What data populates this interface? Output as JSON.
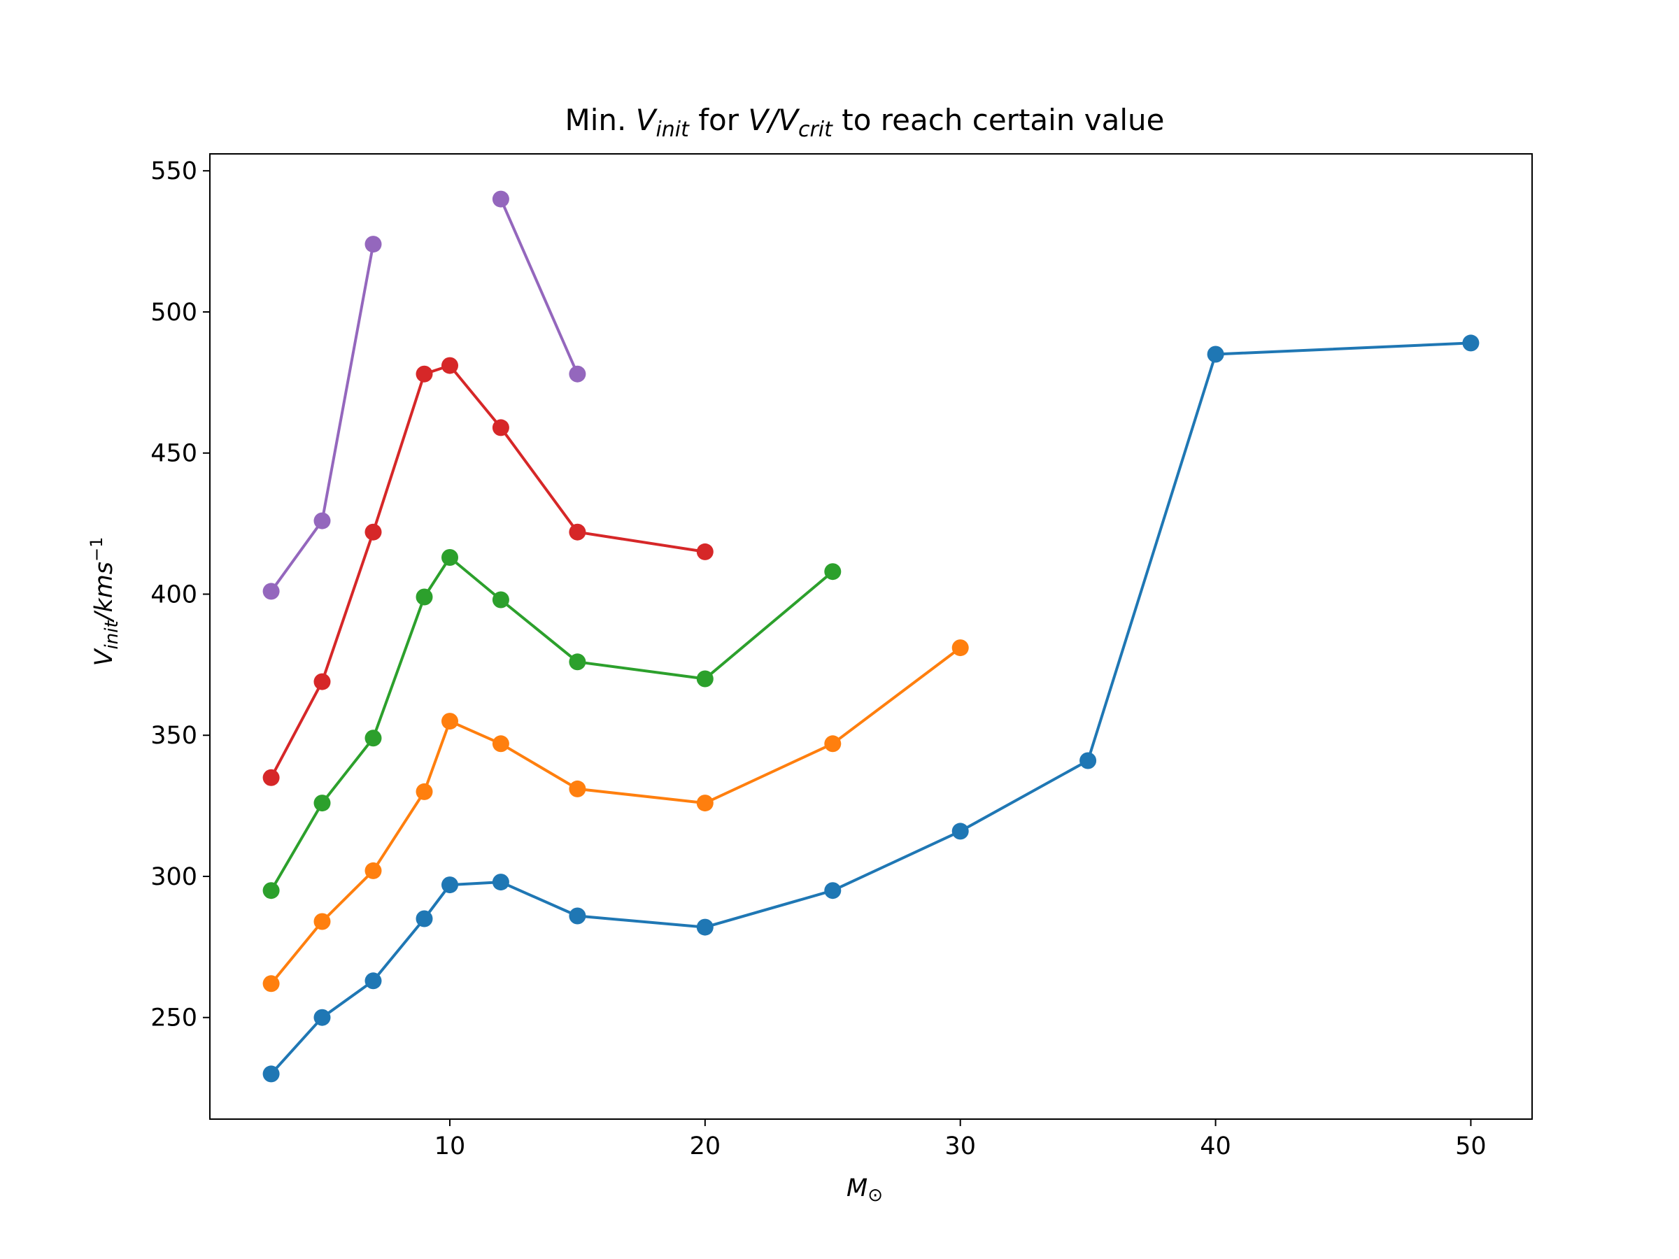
{
  "chart_data": {
    "type": "line",
    "title": {
      "prefix": "Min. ",
      "v1": "V",
      "v1_sub": "init",
      "mid": " for ",
      "v2": "V/V",
      "v2_sub": "crit",
      "suffix": " to reach certain value"
    },
    "xlabel": {
      "main": "M",
      "sub": "⊙"
    },
    "ylabel": {
      "main": "V",
      "sub": "init",
      "unit": "/kms",
      "sup": "−1"
    },
    "xlim": [
      0.6,
      52.4
    ],
    "ylim": [
      214,
      556
    ],
    "x_ticks": [
      10,
      20,
      30,
      40,
      50
    ],
    "y_ticks": [
      250,
      300,
      350,
      400,
      450,
      500,
      550
    ],
    "marker": "circle",
    "grid": false,
    "series": [
      {
        "color": "#1f77b4",
        "segments": [
          [
            [
              3,
              230
            ],
            [
              5,
              250
            ],
            [
              7,
              263
            ],
            [
              9,
              285
            ],
            [
              10,
              297
            ],
            [
              12,
              298
            ],
            [
              15,
              286
            ],
            [
              20,
              282
            ],
            [
              25,
              295
            ],
            [
              30,
              316
            ],
            [
              35,
              341
            ],
            [
              40,
              485
            ],
            [
              50,
              489
            ]
          ]
        ]
      },
      {
        "color": "#ff7f0e",
        "segments": [
          [
            [
              3,
              262
            ],
            [
              5,
              284
            ],
            [
              7,
              302
            ],
            [
              9,
              330
            ],
            [
              10,
              355
            ],
            [
              12,
              347
            ],
            [
              15,
              331
            ],
            [
              20,
              326
            ],
            [
              25,
              347
            ],
            [
              30,
              381
            ]
          ]
        ]
      },
      {
        "color": "#2ca02c",
        "segments": [
          [
            [
              3,
              295
            ],
            [
              5,
              326
            ],
            [
              7,
              349
            ],
            [
              9,
              399
            ],
            [
              10,
              413
            ],
            [
              12,
              398
            ],
            [
              15,
              376
            ],
            [
              20,
              370
            ],
            [
              25,
              408
            ]
          ]
        ]
      },
      {
        "color": "#d62728",
        "segments": [
          [
            [
              3,
              335
            ],
            [
              5,
              369
            ],
            [
              7,
              422
            ],
            [
              9,
              478
            ],
            [
              10,
              481
            ],
            [
              12,
              459
            ],
            [
              15,
              422
            ],
            [
              20,
              415
            ]
          ]
        ]
      },
      {
        "color": "#9467bd",
        "segments": [
          [
            [
              3,
              401
            ],
            [
              5,
              426
            ],
            [
              7,
              524
            ]
          ],
          [
            [
              12,
              540
            ],
            [
              15,
              478
            ]
          ]
        ]
      }
    ]
  }
}
